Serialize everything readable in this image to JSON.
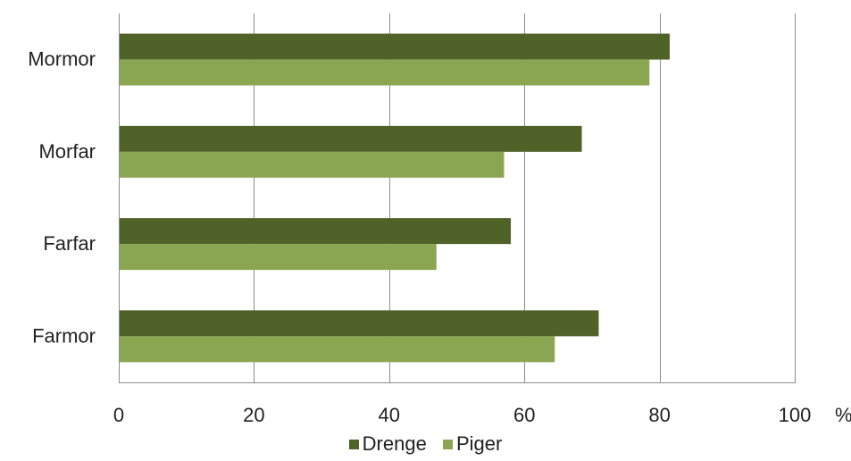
{
  "chart_data": {
    "type": "bar",
    "orientation": "horizontal",
    "categories": [
      "Mormor",
      "Morfar",
      "Farfar",
      "Farmor"
    ],
    "series": [
      {
        "name": "Drenge",
        "color": "#4f6228",
        "values": [
          81.5,
          68.5,
          58,
          71
        ]
      },
      {
        "name": "Piger",
        "color": "#8ba651",
        "values": [
          78.5,
          57,
          47,
          64.5
        ]
      }
    ],
    "xlim": [
      0,
      100
    ],
    "xticks": [
      0,
      20,
      40,
      60,
      80,
      100
    ],
    "tick_labels": [
      "0",
      "20",
      "40",
      "60",
      "80",
      "100"
    ],
    "unit": "%",
    "grid": true,
    "legend_position": "bottom"
  }
}
